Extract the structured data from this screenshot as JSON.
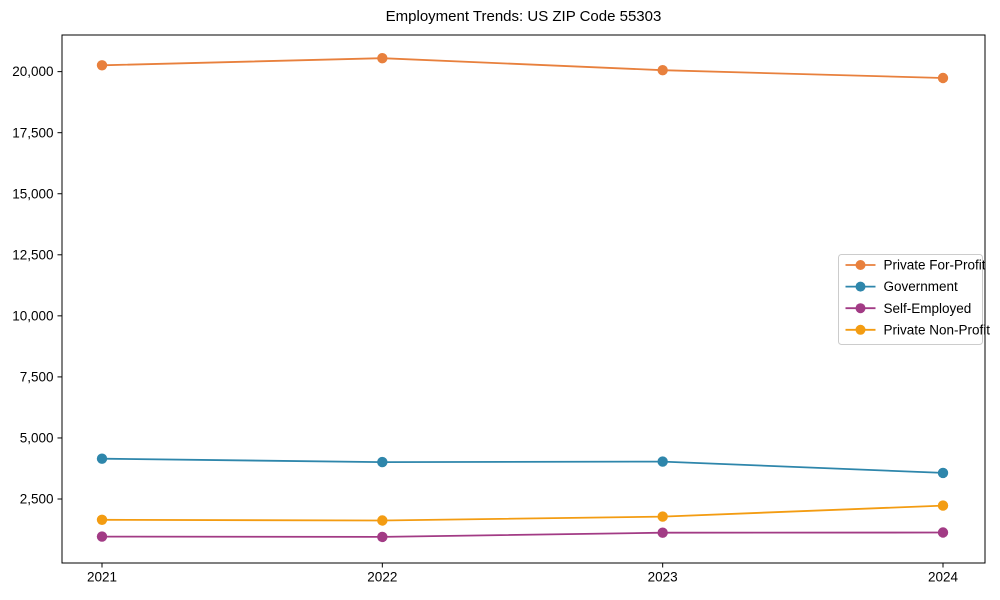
{
  "page": {
    "title": "Employment Trends: US ZIP Code 55303"
  },
  "chart_data": {
    "type": "line",
    "title": "Employment Trends: US ZIP Code 55303",
    "x": [
      2021,
      2022,
      2023,
      2024
    ],
    "xtick_labels": [
      "2021",
      "2022",
      "2023",
      "2024"
    ],
    "series": [
      {
        "name": "Private For-Profit",
        "color": "#E8803D",
        "values": [
          20260,
          20550,
          20060,
          19740
        ]
      },
      {
        "name": "Government",
        "color": "#2E86AB",
        "values": [
          4150,
          4010,
          4030,
          3570
        ]
      },
      {
        "name": "Self-Employed",
        "color": "#A23B85",
        "values": [
          960,
          950,
          1120,
          1130
        ]
      },
      {
        "name": "Private Non-Profit",
        "color": "#F39C12",
        "values": [
          1650,
          1620,
          1780,
          2230
        ]
      }
    ],
    "yticks": [
      2500,
      5000,
      7500,
      10000,
      12500,
      15000,
      17500,
      20000
    ],
    "ytick_labels": [
      "2,500",
      "5,000",
      "7,500",
      "10,000",
      "12,500",
      "15,000",
      "17,500",
      "20,000"
    ],
    "ylim": [
      -120,
      21500
    ],
    "xlabel": "",
    "ylabel": "",
    "grid": false,
    "marker": "o",
    "legend_position": "right",
    "colors": {
      "background": "#ffffff",
      "axis": "#000000",
      "tick_label": "#000000",
      "legend_border": "#cccccc",
      "legend_background": "#ffffff"
    }
  }
}
